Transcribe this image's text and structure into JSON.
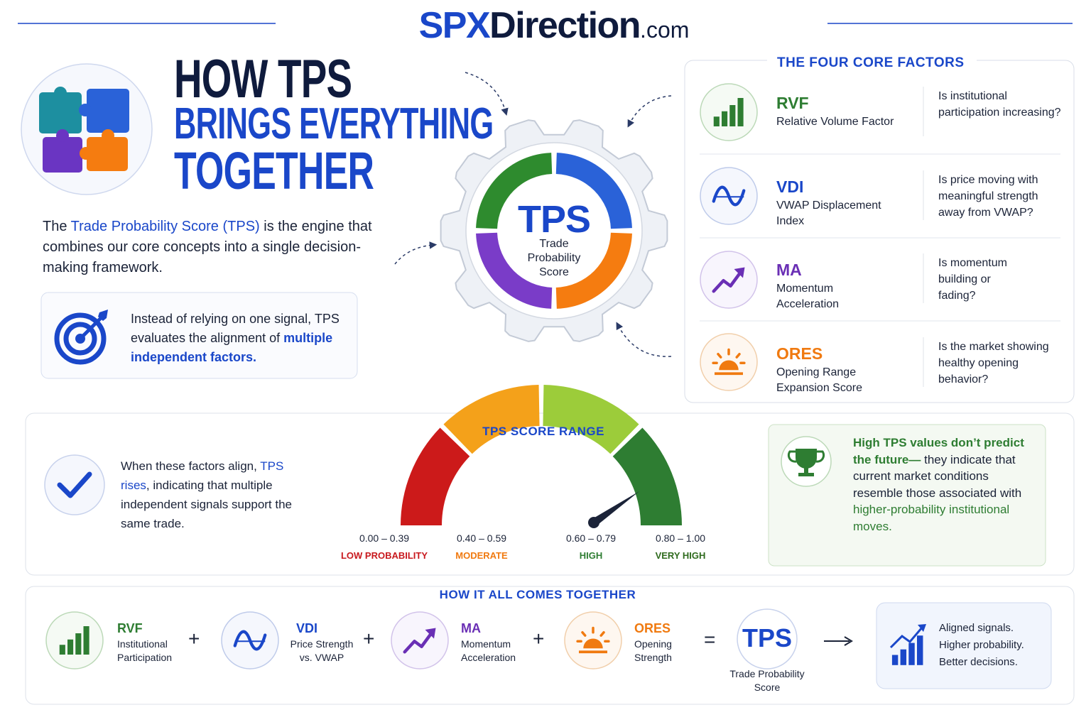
{
  "header": {
    "brand_a": "SPX",
    "brand_b": "Direction",
    "brand_c": ".com"
  },
  "hero": {
    "line1": "HOW TPS",
    "line2": "BRINGS EVERYTHING",
    "line3": "TOGETHER"
  },
  "intro": {
    "before": "The ",
    "highlight": "Trade Probability Score (TPS)",
    "after": " is the engine that combines our core concepts into a single decision-making framework."
  },
  "callout": {
    "text": "Instead of relying on one signal, TPS evaluates the alignment of ",
    "highlight": "multiple independent factors."
  },
  "engine": {
    "title": "TPS",
    "subtitle": "Trade Probability Score"
  },
  "factors": {
    "title": "THE FOUR CORE FACTORS",
    "items": [
      {
        "code": "RVF",
        "name": "Relative Volume Factor",
        "question": "Is institutional participation increasing?"
      },
      {
        "code": "VDI",
        "name": "VWAP Displacement Index",
        "question": "Is price moving with meaningful strength away from VWAP?"
      },
      {
        "code": "MA",
        "name": "Momentum Acceleration",
        "question": "Is momentum building or fading?"
      },
      {
        "code": "ORES",
        "name": "Opening Range Expansion Score",
        "question": "Is the market showing healthy opening behavior?"
      }
    ]
  },
  "align": {
    "before": "When these factors align, ",
    "highlight": "TPS rises",
    "after": ", indicating that multiple independent signals support the same trade."
  },
  "score_range": {
    "title": "TPS SCORE RANGE",
    "bands": [
      {
        "range": "0.00 – 0.39",
        "label": "LOW PROBABILITY"
      },
      {
        "range": "0.40 – 0.59",
        "label": "MODERATE"
      },
      {
        "range": "0.60 – 0.79",
        "label": "HIGH"
      },
      {
        "range": "0.80 – 1.00",
        "label": "VERY HIGH"
      }
    ]
  },
  "note": {
    "highlight1": "High TPS values don’t predict the future—",
    "text": " they indicate that current market conditions resemble those associated with ",
    "highlight2": "higher-probability institutional moves."
  },
  "summary": {
    "title": "HOW IT ALL COMES TOGETHER",
    "items": [
      {
        "code": "RVF",
        "caption": "Institutional Participation"
      },
      {
        "code": "VDI",
        "caption": "Price Strength vs. VWAP"
      },
      {
        "code": "MA",
        "caption": "Momentum Acceleration"
      },
      {
        "code": "ORES",
        "caption": "Opening Strength"
      }
    ],
    "operators": [
      "+",
      "+",
      "+",
      "="
    ],
    "result": {
      "code": "TPS",
      "caption": "Trade Probability Score"
    },
    "outcome": [
      "Aligned signals.",
      "Higher probability.",
      "Better decisions."
    ]
  }
}
